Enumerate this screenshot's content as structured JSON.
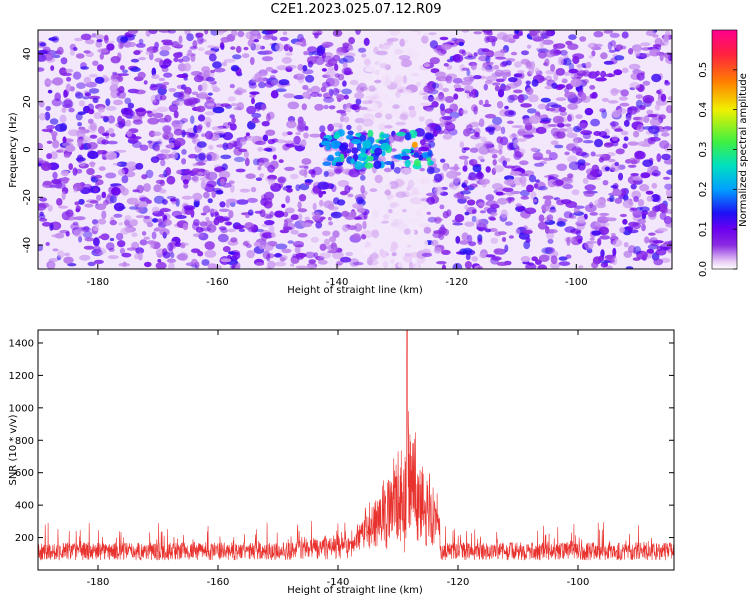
{
  "title": "C2E1.2023.025.07.12.R09",
  "colors": {
    "snr_line": "#e8302c",
    "colormap": [
      "#ffffff",
      "#e7c9f5",
      "#8b2be2",
      "#6a00f0",
      "#1e10f5",
      "#00a0ff",
      "#00e0c0",
      "#40f040",
      "#f0f000",
      "#ff8000",
      "#ff2040",
      "#ff0090"
    ]
  },
  "chart_data": [
    {
      "type": "heatmap",
      "name": "spectrogram",
      "xlabel": "Height of straight line (km)",
      "ylabel": "Frequency (Hz)",
      "xlim": [
        -190,
        -84
      ],
      "ylim": [
        -50,
        50
      ],
      "xticks": [
        -180,
        -160,
        -140,
        -120,
        -100
      ],
      "yticks": [
        -40,
        -20,
        0,
        20,
        40
      ],
      "colorbar": {
        "label": "Normalized spectral amplitude",
        "range": [
          0.0,
          0.6
        ],
        "ticks": [
          0.0,
          0.1,
          0.2,
          0.3,
          0.4,
          0.5
        ]
      },
      "features": {
        "signal_center_hz": 0,
        "signal_band_km": [
          -142,
          -124
        ],
        "gap_band_km": [
          -135,
          -125
        ],
        "peak_amplitude": 0.45,
        "peak_location_km": -127
      }
    },
    {
      "type": "line",
      "name": "snr",
      "xlabel": "Height of straight line (km)",
      "ylabel": "SNR (10 * v/v)",
      "xlim": [
        -190,
        -84
      ],
      "ylim": [
        0,
        1480
      ],
      "xticks": [
        -180,
        -160,
        -140,
        -120,
        -100
      ],
      "yticks": [
        200,
        400,
        600,
        800,
        1000,
        1200,
        1400
      ],
      "features": {
        "baseline_range": [
          0,
          300
        ],
        "peak_x_km": -128.5,
        "peak_value": 1480,
        "burst_band_km": [
          -137,
          -123
        ]
      }
    }
  ]
}
